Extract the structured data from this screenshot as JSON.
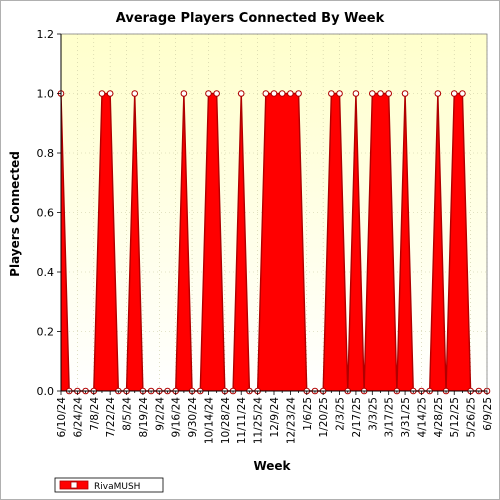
{
  "chart_data": {
    "type": "area",
    "title": "Average Players Connected By Week",
    "xlabel": "Week",
    "ylabel": "Players Connected",
    "ylim": [
      0,
      1.2
    ],
    "yticks": [
      "0.0",
      "0.2",
      "0.4",
      "0.6",
      "0.8",
      "1.0",
      "1.2"
    ],
    "x": [
      "6/10/24",
      "6/17/24",
      "6/24/24",
      "7/1/24",
      "7/8/24",
      "7/15/24",
      "7/22/24",
      "7/29/24",
      "8/5/24",
      "8/12/24",
      "8/19/24",
      "8/26/24",
      "9/2/24",
      "9/9/24",
      "9/16/24",
      "9/23/24",
      "9/30/24",
      "10/7/24",
      "10/14/24",
      "10/21/24",
      "10/28/24",
      "11/4/24",
      "11/11/24",
      "11/18/24",
      "11/25/24",
      "12/2/24",
      "12/9/24",
      "12/16/24",
      "12/23/24",
      "12/30/24",
      "1/6/25",
      "1/13/25",
      "1/20/25",
      "1/27/25",
      "2/3/25",
      "2/10/25",
      "2/17/25",
      "2/24/25",
      "3/3/25",
      "3/10/25",
      "3/17/25",
      "3/24/25",
      "3/31/25",
      "4/7/25",
      "4/14/25",
      "4/21/25",
      "4/28/25",
      "5/5/25",
      "5/12/25",
      "5/19/25",
      "5/26/25",
      "6/2/25",
      "6/9/25"
    ],
    "xtick_labels": [
      "6/10/24",
      "6/24/24",
      "7/8/24",
      "7/22/24",
      "8/5/24",
      "8/19/24",
      "9/2/24",
      "9/16/24",
      "9/30/24",
      "10/14/24",
      "10/28/24",
      "11/11/24",
      "11/25/24",
      "12/9/24",
      "12/23/24",
      "1/6/25",
      "1/20/25",
      "2/3/25",
      "2/17/25",
      "3/3/25",
      "3/17/25",
      "3/31/25",
      "4/14/25",
      "4/28/25",
      "5/12/25",
      "5/26/25",
      "6/9/25"
    ],
    "series": [
      {
        "name": "RivaMUSH",
        "color": "#ff0000",
        "values": [
          1,
          0,
          0,
          0,
          0,
          1,
          1,
          0,
          0,
          1,
          0,
          0,
          0,
          0,
          0,
          1,
          0,
          0,
          1,
          1,
          0,
          0,
          1,
          0,
          0,
          1,
          1,
          1,
          1,
          1,
          0,
          0,
          0,
          1,
          1,
          0,
          1,
          0,
          1,
          1,
          1,
          0,
          1,
          0,
          0,
          0,
          1,
          0,
          1,
          1,
          0,
          0,
          0
        ]
      }
    ],
    "grid": true,
    "legend": "bottom-left",
    "plot_background": "#ffffd8"
  }
}
